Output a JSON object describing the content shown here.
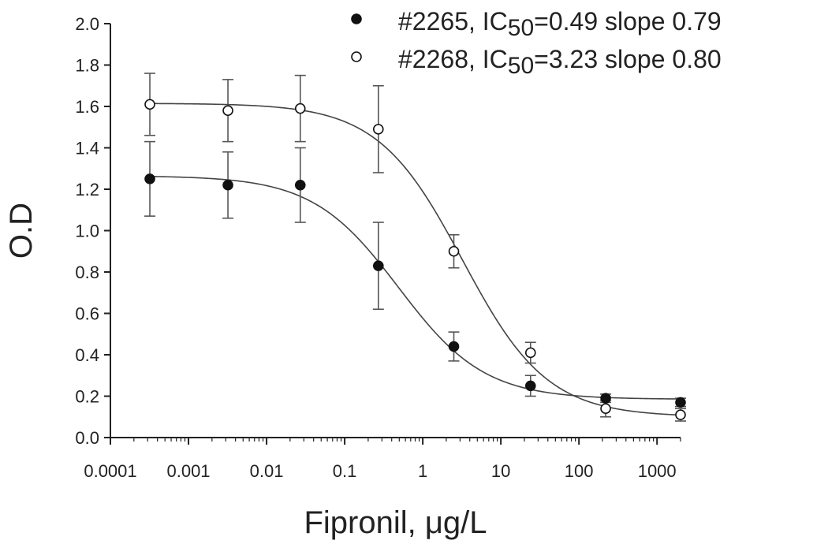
{
  "chart_data": {
    "type": "scatter",
    "xlabel": "Fipronil, μg/L",
    "ylabel": "O.D",
    "x_scale": "log",
    "xlim": [
      0.0001,
      2000
    ],
    "ylim": [
      0.0,
      2.0
    ],
    "x_ticks": [
      0.0001,
      0.001,
      0.01,
      0.1,
      1,
      10,
      100,
      1000
    ],
    "x_tick_labels": [
      "0.0001",
      "0.001",
      "0.01",
      "0.1",
      "1",
      "10",
      "100",
      "1000"
    ],
    "y_ticks": [
      0.0,
      0.2,
      0.4,
      0.6,
      0.8,
      1.0,
      1.2,
      1.4,
      1.6,
      1.8,
      2.0
    ],
    "y_tick_labels": [
      "0.0",
      "0.2",
      "0.4",
      "0.6",
      "0.8",
      "1.0",
      "1.2",
      "1.4",
      "1.6",
      "1.8",
      "2.0"
    ],
    "grid": false,
    "legend_position": "top-right",
    "series": [
      {
        "name": "#2265, IC50=0.49 slope 0.79",
        "legend_prefix": "#2265, IC",
        "legend_sub": "50",
        "legend_suffix": "=0.49 slope 0.79",
        "marker": "filled-circle",
        "color": "#111111",
        "x": [
          0.00032,
          0.0032,
          0.027,
          0.27,
          2.5,
          24,
          220,
          2000
        ],
        "y": [
          1.25,
          1.22,
          1.22,
          0.83,
          0.44,
          0.25,
          0.19,
          0.17
        ],
        "err": [
          0.18,
          0.16,
          0.18,
          0.21,
          0.07,
          0.05,
          0.02,
          0.02
        ],
        "fit": {
          "top": 1.265,
          "bottom": 0.185,
          "ic50": 0.49,
          "hill": 0.79
        }
      },
      {
        "name": "#2268, IC50=3.23 slope 0.80",
        "legend_prefix": "#2268, IC",
        "legend_sub": "50",
        "legend_suffix": "=3.23 slope 0.80",
        "marker": "open-circle",
        "color": "#111111",
        "x": [
          0.00032,
          0.0032,
          0.027,
          0.27,
          2.5,
          24,
          220,
          2000
        ],
        "y": [
          1.61,
          1.58,
          1.59,
          1.49,
          0.9,
          0.41,
          0.14,
          0.11
        ],
        "err": [
          0.15,
          0.15,
          0.16,
          0.21,
          0.08,
          0.05,
          0.04,
          0.03
        ],
        "fit": {
          "top": 1.615,
          "bottom": 0.1,
          "ic50": 3.23,
          "hill": 0.8
        }
      }
    ]
  }
}
